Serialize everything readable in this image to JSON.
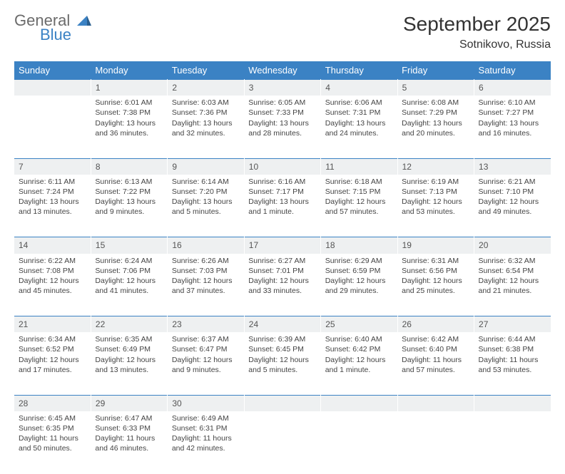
{
  "logo": {
    "general": "General",
    "blue": "Blue"
  },
  "title": "September 2025",
  "location": "Sotnikovo, Russia",
  "colors": {
    "header_bg": "#3b82c4",
    "header_text": "#ffffff",
    "daynum_bg": "#eef0f1",
    "rule": "#3b82c4"
  },
  "weekdays": [
    "Sunday",
    "Monday",
    "Tuesday",
    "Wednesday",
    "Thursday",
    "Friday",
    "Saturday"
  ],
  "weeks": [
    [
      {
        "n": "",
        "sr": "",
        "ss": "",
        "dl": ""
      },
      {
        "n": "1",
        "sr": "Sunrise: 6:01 AM",
        "ss": "Sunset: 7:38 PM",
        "dl": "Daylight: 13 hours and 36 minutes."
      },
      {
        "n": "2",
        "sr": "Sunrise: 6:03 AM",
        "ss": "Sunset: 7:36 PM",
        "dl": "Daylight: 13 hours and 32 minutes."
      },
      {
        "n": "3",
        "sr": "Sunrise: 6:05 AM",
        "ss": "Sunset: 7:33 PM",
        "dl": "Daylight: 13 hours and 28 minutes."
      },
      {
        "n": "4",
        "sr": "Sunrise: 6:06 AM",
        "ss": "Sunset: 7:31 PM",
        "dl": "Daylight: 13 hours and 24 minutes."
      },
      {
        "n": "5",
        "sr": "Sunrise: 6:08 AM",
        "ss": "Sunset: 7:29 PM",
        "dl": "Daylight: 13 hours and 20 minutes."
      },
      {
        "n": "6",
        "sr": "Sunrise: 6:10 AM",
        "ss": "Sunset: 7:27 PM",
        "dl": "Daylight: 13 hours and 16 minutes."
      }
    ],
    [
      {
        "n": "7",
        "sr": "Sunrise: 6:11 AM",
        "ss": "Sunset: 7:24 PM",
        "dl": "Daylight: 13 hours and 13 minutes."
      },
      {
        "n": "8",
        "sr": "Sunrise: 6:13 AM",
        "ss": "Sunset: 7:22 PM",
        "dl": "Daylight: 13 hours and 9 minutes."
      },
      {
        "n": "9",
        "sr": "Sunrise: 6:14 AM",
        "ss": "Sunset: 7:20 PM",
        "dl": "Daylight: 13 hours and 5 minutes."
      },
      {
        "n": "10",
        "sr": "Sunrise: 6:16 AM",
        "ss": "Sunset: 7:17 PM",
        "dl": "Daylight: 13 hours and 1 minute."
      },
      {
        "n": "11",
        "sr": "Sunrise: 6:18 AM",
        "ss": "Sunset: 7:15 PM",
        "dl": "Daylight: 12 hours and 57 minutes."
      },
      {
        "n": "12",
        "sr": "Sunrise: 6:19 AM",
        "ss": "Sunset: 7:13 PM",
        "dl": "Daylight: 12 hours and 53 minutes."
      },
      {
        "n": "13",
        "sr": "Sunrise: 6:21 AM",
        "ss": "Sunset: 7:10 PM",
        "dl": "Daylight: 12 hours and 49 minutes."
      }
    ],
    [
      {
        "n": "14",
        "sr": "Sunrise: 6:22 AM",
        "ss": "Sunset: 7:08 PM",
        "dl": "Daylight: 12 hours and 45 minutes."
      },
      {
        "n": "15",
        "sr": "Sunrise: 6:24 AM",
        "ss": "Sunset: 7:06 PM",
        "dl": "Daylight: 12 hours and 41 minutes."
      },
      {
        "n": "16",
        "sr": "Sunrise: 6:26 AM",
        "ss": "Sunset: 7:03 PM",
        "dl": "Daylight: 12 hours and 37 minutes."
      },
      {
        "n": "17",
        "sr": "Sunrise: 6:27 AM",
        "ss": "Sunset: 7:01 PM",
        "dl": "Daylight: 12 hours and 33 minutes."
      },
      {
        "n": "18",
        "sr": "Sunrise: 6:29 AM",
        "ss": "Sunset: 6:59 PM",
        "dl": "Daylight: 12 hours and 29 minutes."
      },
      {
        "n": "19",
        "sr": "Sunrise: 6:31 AM",
        "ss": "Sunset: 6:56 PM",
        "dl": "Daylight: 12 hours and 25 minutes."
      },
      {
        "n": "20",
        "sr": "Sunrise: 6:32 AM",
        "ss": "Sunset: 6:54 PM",
        "dl": "Daylight: 12 hours and 21 minutes."
      }
    ],
    [
      {
        "n": "21",
        "sr": "Sunrise: 6:34 AM",
        "ss": "Sunset: 6:52 PM",
        "dl": "Daylight: 12 hours and 17 minutes."
      },
      {
        "n": "22",
        "sr": "Sunrise: 6:35 AM",
        "ss": "Sunset: 6:49 PM",
        "dl": "Daylight: 12 hours and 13 minutes."
      },
      {
        "n": "23",
        "sr": "Sunrise: 6:37 AM",
        "ss": "Sunset: 6:47 PM",
        "dl": "Daylight: 12 hours and 9 minutes."
      },
      {
        "n": "24",
        "sr": "Sunrise: 6:39 AM",
        "ss": "Sunset: 6:45 PM",
        "dl": "Daylight: 12 hours and 5 minutes."
      },
      {
        "n": "25",
        "sr": "Sunrise: 6:40 AM",
        "ss": "Sunset: 6:42 PM",
        "dl": "Daylight: 12 hours and 1 minute."
      },
      {
        "n": "26",
        "sr": "Sunrise: 6:42 AM",
        "ss": "Sunset: 6:40 PM",
        "dl": "Daylight: 11 hours and 57 minutes."
      },
      {
        "n": "27",
        "sr": "Sunrise: 6:44 AM",
        "ss": "Sunset: 6:38 PM",
        "dl": "Daylight: 11 hours and 53 minutes."
      }
    ],
    [
      {
        "n": "28",
        "sr": "Sunrise: 6:45 AM",
        "ss": "Sunset: 6:35 PM",
        "dl": "Daylight: 11 hours and 50 minutes."
      },
      {
        "n": "29",
        "sr": "Sunrise: 6:47 AM",
        "ss": "Sunset: 6:33 PM",
        "dl": "Daylight: 11 hours and 46 minutes."
      },
      {
        "n": "30",
        "sr": "Sunrise: 6:49 AM",
        "ss": "Sunset: 6:31 PM",
        "dl": "Daylight: 11 hours and 42 minutes."
      },
      {
        "n": "",
        "sr": "",
        "ss": "",
        "dl": ""
      },
      {
        "n": "",
        "sr": "",
        "ss": "",
        "dl": ""
      },
      {
        "n": "",
        "sr": "",
        "ss": "",
        "dl": ""
      },
      {
        "n": "",
        "sr": "",
        "ss": "",
        "dl": ""
      }
    ]
  ]
}
